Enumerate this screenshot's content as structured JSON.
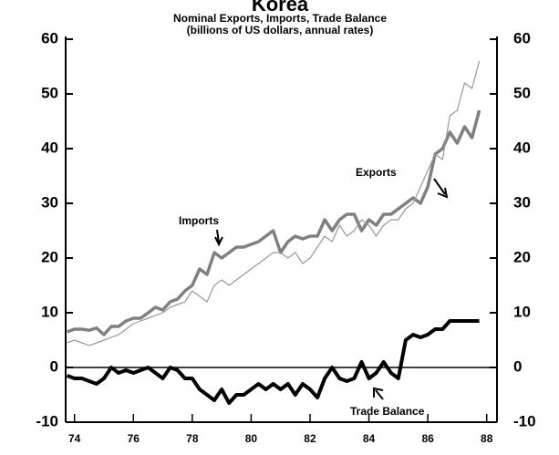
{
  "chart_data": {
    "type": "line",
    "title": "Korea",
    "subtitle": [
      "Nominal Exports, Imports, Trade Balance",
      "(billions of US dollars, annual rates)"
    ],
    "x": [
      1973.75,
      1974,
      1974.25,
      1974.5,
      1974.75,
      1975,
      1975.25,
      1975.5,
      1975.75,
      1976,
      1976.25,
      1976.5,
      1976.75,
      1977,
      1977.25,
      1977.5,
      1977.75,
      1978,
      1978.25,
      1978.5,
      1978.75,
      1979,
      1979.25,
      1979.5,
      1979.75,
      1980,
      1980.25,
      1980.5,
      1980.75,
      1981,
      1981.25,
      1981.5,
      1981.75,
      1982,
      1982.25,
      1982.5,
      1982.75,
      1983,
      1983.25,
      1983.5,
      1983.75,
      1984,
      1984.25,
      1984.5,
      1984.75,
      1985,
      1985.25,
      1985.5,
      1985.75,
      1986,
      1986.25,
      1986.5,
      1986.75,
      1987,
      1987.25,
      1987.5,
      1987.75
    ],
    "series": [
      {
        "name": "Imports",
        "color": "#808080",
        "width": 3.5,
        "values": [
          6.5,
          7,
          7,
          6.8,
          7.2,
          6,
          7.5,
          7.5,
          8.5,
          9,
          9,
          10,
          11,
          10.5,
          12,
          12.5,
          14,
          15,
          18,
          17,
          21,
          20,
          21,
          22,
          22,
          22.5,
          23,
          24,
          25,
          21,
          23,
          24,
          23.5,
          24,
          24,
          27,
          25,
          27,
          28,
          28,
          25,
          27,
          26,
          28,
          28,
          29,
          30,
          31,
          30,
          33,
          39,
          40,
          43,
          41,
          44,
          42,
          47
        ]
      },
      {
        "name": "Exports",
        "color": "#999999",
        "width": 1.2,
        "values": [
          4.5,
          5,
          4.5,
          4,
          4.5,
          5,
          5.5,
          6,
          7,
          8,
          8.5,
          9,
          9.5,
          10,
          11,
          11.5,
          12,
          14,
          13,
          12,
          15,
          16,
          15,
          16,
          17,
          18,
          19,
          20,
          21,
          21,
          20,
          21,
          19,
          20,
          22,
          24,
          23,
          26,
          24,
          25,
          27,
          26,
          24,
          26,
          27,
          27,
          29,
          30,
          33,
          36,
          39,
          38,
          46,
          47,
          52,
          51,
          56
        ]
      },
      {
        "name": "Trade Balance",
        "color": "#000000",
        "width": 4,
        "values": [
          -1.5,
          -2,
          -2,
          -2.5,
          -3,
          -2,
          0,
          -1,
          -0.5,
          -1,
          -0.5,
          0,
          -1,
          -2,
          0,
          -0.5,
          -2,
          -2,
          -4,
          -5,
          -6,
          -4,
          -6.5,
          -5,
          -5,
          -4,
          -3,
          -4,
          -3,
          -4,
          -3,
          -5,
          -3,
          -4,
          -5.5,
          -2,
          0,
          -2,
          -2.5,
          -2,
          1,
          -2,
          -1,
          1,
          -1,
          -2,
          5,
          6,
          5.5,
          6,
          7,
          7,
          8.5,
          8.5,
          8.5,
          8.5,
          8.5
        ]
      }
    ],
    "xlim": [
      1973.7,
      1988.35
    ],
    "xticks": [
      {
        "value": 1974,
        "label": "74"
      },
      {
        "value": 1976,
        "label": "76"
      },
      {
        "value": 1978,
        "label": "78"
      },
      {
        "value": 1980,
        "label": "80"
      },
      {
        "value": 1982,
        "label": "82"
      },
      {
        "value": 1984,
        "label": "84"
      },
      {
        "value": 1986,
        "label": "86"
      },
      {
        "value": 1988,
        "label": "88"
      }
    ],
    "ylim": [
      -10,
      60
    ],
    "yticks": [
      -10,
      0,
      10,
      20,
      30,
      40,
      50,
      60
    ]
  }
}
